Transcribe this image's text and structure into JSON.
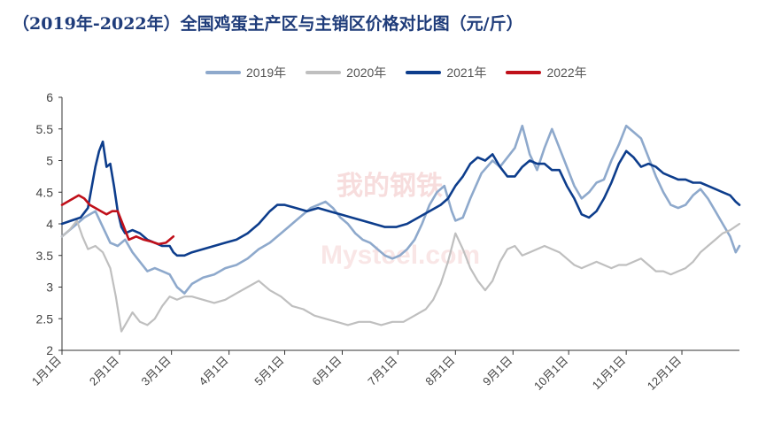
{
  "chart_data": {
    "type": "line",
    "title": "（2019年-2022年）全国鸡蛋主产区与主销区价格对比图（元/斤）",
    "ylim": [
      2,
      6
    ],
    "yticks": [
      2,
      2.5,
      3,
      3.5,
      4,
      4.5,
      5,
      5.5,
      6
    ],
    "xlim": [
      0,
      365
    ],
    "xticks": [
      {
        "label": "1月1日",
        "day": 0
      },
      {
        "label": "2月1日",
        "day": 31
      },
      {
        "label": "3月1日",
        "day": 59
      },
      {
        "label": "4月1日",
        "day": 90
      },
      {
        "label": "5月1日",
        "day": 120
      },
      {
        "label": "6月1日",
        "day": 151
      },
      {
        "label": "7月1日",
        "day": 181
      },
      {
        "label": "8月1日",
        "day": 212
      },
      {
        "label": "9月1日",
        "day": 243
      },
      {
        "label": "10月1日",
        "day": 273
      },
      {
        "label": "11月1日",
        "day": 304
      },
      {
        "label": "12月1日",
        "day": 334
      }
    ],
    "grid": false,
    "legend_position": "top",
    "watermark": "我的钢铁 Mysteel.com",
    "series": [
      {
        "name": "2019年",
        "color": "#8ea9cc",
        "points": [
          [
            0,
            3.8
          ],
          [
            6,
            3.95
          ],
          [
            12,
            4.1
          ],
          [
            18,
            4.2
          ],
          [
            22,
            3.95
          ],
          [
            26,
            3.7
          ],
          [
            30,
            3.65
          ],
          [
            34,
            3.75
          ],
          [
            38,
            3.55
          ],
          [
            42,
            3.4
          ],
          [
            46,
            3.25
          ],
          [
            50,
            3.3
          ],
          [
            54,
            3.25
          ],
          [
            58,
            3.2
          ],
          [
            62,
            3.0
          ],
          [
            66,
            2.9
          ],
          [
            70,
            3.05
          ],
          [
            76,
            3.15
          ],
          [
            82,
            3.2
          ],
          [
            88,
            3.3
          ],
          [
            94,
            3.35
          ],
          [
            100,
            3.45
          ],
          [
            106,
            3.6
          ],
          [
            112,
            3.7
          ],
          [
            118,
            3.85
          ],
          [
            122,
            3.95
          ],
          [
            126,
            4.05
          ],
          [
            130,
            4.15
          ],
          [
            134,
            4.25
          ],
          [
            138,
            4.3
          ],
          [
            142,
            4.35
          ],
          [
            146,
            4.25
          ],
          [
            150,
            4.1
          ],
          [
            154,
            4.0
          ],
          [
            158,
            3.85
          ],
          [
            162,
            3.75
          ],
          [
            166,
            3.7
          ],
          [
            170,
            3.6
          ],
          [
            174,
            3.5
          ],
          [
            178,
            3.45
          ],
          [
            182,
            3.5
          ],
          [
            186,
            3.6
          ],
          [
            190,
            3.75
          ],
          [
            194,
            4.0
          ],
          [
            198,
            4.3
          ],
          [
            202,
            4.5
          ],
          [
            206,
            4.6
          ],
          [
            210,
            4.2
          ],
          [
            212,
            4.05
          ],
          [
            216,
            4.1
          ],
          [
            220,
            4.4
          ],
          [
            226,
            4.8
          ],
          [
            232,
            5.0
          ],
          [
            236,
            4.9
          ],
          [
            240,
            5.05
          ],
          [
            244,
            5.2
          ],
          [
            248,
            5.55
          ],
          [
            252,
            5.1
          ],
          [
            256,
            4.85
          ],
          [
            260,
            5.2
          ],
          [
            264,
            5.5
          ],
          [
            268,
            5.2
          ],
          [
            272,
            4.9
          ],
          [
            276,
            4.6
          ],
          [
            280,
            4.4
          ],
          [
            284,
            4.5
          ],
          [
            288,
            4.65
          ],
          [
            292,
            4.7
          ],
          [
            296,
            5.0
          ],
          [
            300,
            5.25
          ],
          [
            304,
            5.55
          ],
          [
            308,
            5.45
          ],
          [
            312,
            5.35
          ],
          [
            316,
            5.05
          ],
          [
            320,
            4.75
          ],
          [
            324,
            4.5
          ],
          [
            328,
            4.3
          ],
          [
            332,
            4.25
          ],
          [
            336,
            4.3
          ],
          [
            340,
            4.45
          ],
          [
            344,
            4.55
          ],
          [
            348,
            4.4
          ],
          [
            352,
            4.2
          ],
          [
            356,
            4.0
          ],
          [
            360,
            3.8
          ],
          [
            363,
            3.55
          ],
          [
            365,
            3.65
          ]
        ]
      },
      {
        "name": "2020年",
        "color": "#bfbfbf",
        "points": [
          [
            0,
            3.8
          ],
          [
            4,
            3.9
          ],
          [
            8,
            4.05
          ],
          [
            11,
            3.8
          ],
          [
            14,
            3.6
          ],
          [
            18,
            3.65
          ],
          [
            22,
            3.55
          ],
          [
            26,
            3.3
          ],
          [
            29,
            2.85
          ],
          [
            32,
            2.3
          ],
          [
            35,
            2.45
          ],
          [
            38,
            2.6
          ],
          [
            42,
            2.45
          ],
          [
            46,
            2.4
          ],
          [
            50,
            2.5
          ],
          [
            54,
            2.7
          ],
          [
            58,
            2.85
          ],
          [
            62,
            2.8
          ],
          [
            66,
            2.85
          ],
          [
            70,
            2.85
          ],
          [
            76,
            2.8
          ],
          [
            82,
            2.75
          ],
          [
            88,
            2.8
          ],
          [
            94,
            2.9
          ],
          [
            100,
            3.0
          ],
          [
            106,
            3.1
          ],
          [
            112,
            2.95
          ],
          [
            118,
            2.85
          ],
          [
            124,
            2.7
          ],
          [
            130,
            2.65
          ],
          [
            136,
            2.55
          ],
          [
            142,
            2.5
          ],
          [
            148,
            2.45
          ],
          [
            154,
            2.4
          ],
          [
            160,
            2.45
          ],
          [
            166,
            2.45
          ],
          [
            172,
            2.4
          ],
          [
            178,
            2.45
          ],
          [
            184,
            2.45
          ],
          [
            190,
            2.55
          ],
          [
            196,
            2.65
          ],
          [
            200,
            2.8
          ],
          [
            204,
            3.05
          ],
          [
            208,
            3.4
          ],
          [
            212,
            3.85
          ],
          [
            216,
            3.6
          ],
          [
            220,
            3.3
          ],
          [
            224,
            3.1
          ],
          [
            228,
            2.95
          ],
          [
            232,
            3.1
          ],
          [
            236,
            3.4
          ],
          [
            240,
            3.6
          ],
          [
            244,
            3.65
          ],
          [
            248,
            3.5
          ],
          [
            252,
            3.55
          ],
          [
            256,
            3.6
          ],
          [
            260,
            3.65
          ],
          [
            264,
            3.6
          ],
          [
            268,
            3.55
          ],
          [
            272,
            3.45
          ],
          [
            276,
            3.35
          ],
          [
            280,
            3.3
          ],
          [
            284,
            3.35
          ],
          [
            288,
            3.4
          ],
          [
            292,
            3.35
          ],
          [
            296,
            3.3
          ],
          [
            300,
            3.35
          ],
          [
            304,
            3.35
          ],
          [
            308,
            3.4
          ],
          [
            312,
            3.45
          ],
          [
            316,
            3.35
          ],
          [
            320,
            3.25
          ],
          [
            324,
            3.25
          ],
          [
            328,
            3.2
          ],
          [
            332,
            3.25
          ],
          [
            336,
            3.3
          ],
          [
            340,
            3.4
          ],
          [
            344,
            3.55
          ],
          [
            348,
            3.65
          ],
          [
            352,
            3.75
          ],
          [
            356,
            3.85
          ],
          [
            360,
            3.9
          ],
          [
            365,
            4.0
          ]
        ]
      },
      {
        "name": "2021年",
        "color": "#0d3d8c",
        "points": [
          [
            0,
            4.0
          ],
          [
            5,
            4.05
          ],
          [
            10,
            4.1
          ],
          [
            14,
            4.25
          ],
          [
            18,
            4.9
          ],
          [
            20,
            5.15
          ],
          [
            22,
            5.3
          ],
          [
            24,
            4.9
          ],
          [
            26,
            4.95
          ],
          [
            28,
            4.6
          ],
          [
            30,
            4.2
          ],
          [
            32,
            3.95
          ],
          [
            34,
            3.85
          ],
          [
            38,
            3.9
          ],
          [
            42,
            3.85
          ],
          [
            46,
            3.75
          ],
          [
            50,
            3.7
          ],
          [
            54,
            3.65
          ],
          [
            58,
            3.65
          ],
          [
            60,
            3.55
          ],
          [
            62,
            3.5
          ],
          [
            66,
            3.5
          ],
          [
            70,
            3.55
          ],
          [
            76,
            3.6
          ],
          [
            82,
            3.65
          ],
          [
            88,
            3.7
          ],
          [
            94,
            3.75
          ],
          [
            100,
            3.85
          ],
          [
            106,
            4.0
          ],
          [
            112,
            4.2
          ],
          [
            116,
            4.3
          ],
          [
            120,
            4.3
          ],
          [
            126,
            4.25
          ],
          [
            132,
            4.2
          ],
          [
            138,
            4.25
          ],
          [
            144,
            4.2
          ],
          [
            150,
            4.15
          ],
          [
            156,
            4.1
          ],
          [
            162,
            4.05
          ],
          [
            168,
            4.0
          ],
          [
            174,
            3.95
          ],
          [
            180,
            3.95
          ],
          [
            186,
            4.0
          ],
          [
            192,
            4.1
          ],
          [
            198,
            4.2
          ],
          [
            204,
            4.3
          ],
          [
            208,
            4.4
          ],
          [
            212,
            4.6
          ],
          [
            216,
            4.75
          ],
          [
            220,
            4.95
          ],
          [
            224,
            5.05
          ],
          [
            228,
            5.0
          ],
          [
            232,
            5.1
          ],
          [
            236,
            4.9
          ],
          [
            240,
            4.75
          ],
          [
            244,
            4.75
          ],
          [
            248,
            4.9
          ],
          [
            252,
            5.0
          ],
          [
            256,
            4.95
          ],
          [
            260,
            4.95
          ],
          [
            264,
            4.85
          ],
          [
            268,
            4.85
          ],
          [
            272,
            4.6
          ],
          [
            276,
            4.4
          ],
          [
            280,
            4.15
          ],
          [
            284,
            4.1
          ],
          [
            288,
            4.2
          ],
          [
            292,
            4.4
          ],
          [
            296,
            4.65
          ],
          [
            300,
            4.95
          ],
          [
            304,
            5.15
          ],
          [
            308,
            5.05
          ],
          [
            312,
            4.9
          ],
          [
            316,
            4.95
          ],
          [
            320,
            4.9
          ],
          [
            324,
            4.8
          ],
          [
            328,
            4.75
          ],
          [
            332,
            4.7
          ],
          [
            336,
            4.7
          ],
          [
            340,
            4.65
          ],
          [
            344,
            4.65
          ],
          [
            348,
            4.6
          ],
          [
            352,
            4.55
          ],
          [
            356,
            4.5
          ],
          [
            360,
            4.45
          ],
          [
            363,
            4.35
          ],
          [
            365,
            4.3
          ]
        ]
      },
      {
        "name": "2022年",
        "color": "#c0101a",
        "points": [
          [
            0,
            4.3
          ],
          [
            3,
            4.35
          ],
          [
            6,
            4.4
          ],
          [
            9,
            4.45
          ],
          [
            12,
            4.4
          ],
          [
            15,
            4.3
          ],
          [
            18,
            4.25
          ],
          [
            21,
            4.2
          ],
          [
            24,
            4.15
          ],
          [
            27,
            4.2
          ],
          [
            30,
            4.2
          ],
          [
            36,
            3.75
          ],
          [
            40,
            3.8
          ],
          [
            44,
            3.75
          ],
          [
            48,
            3.72
          ],
          [
            52,
            3.68
          ],
          [
            56,
            3.7
          ],
          [
            58,
            3.75
          ],
          [
            60,
            3.8
          ]
        ]
      }
    ]
  }
}
